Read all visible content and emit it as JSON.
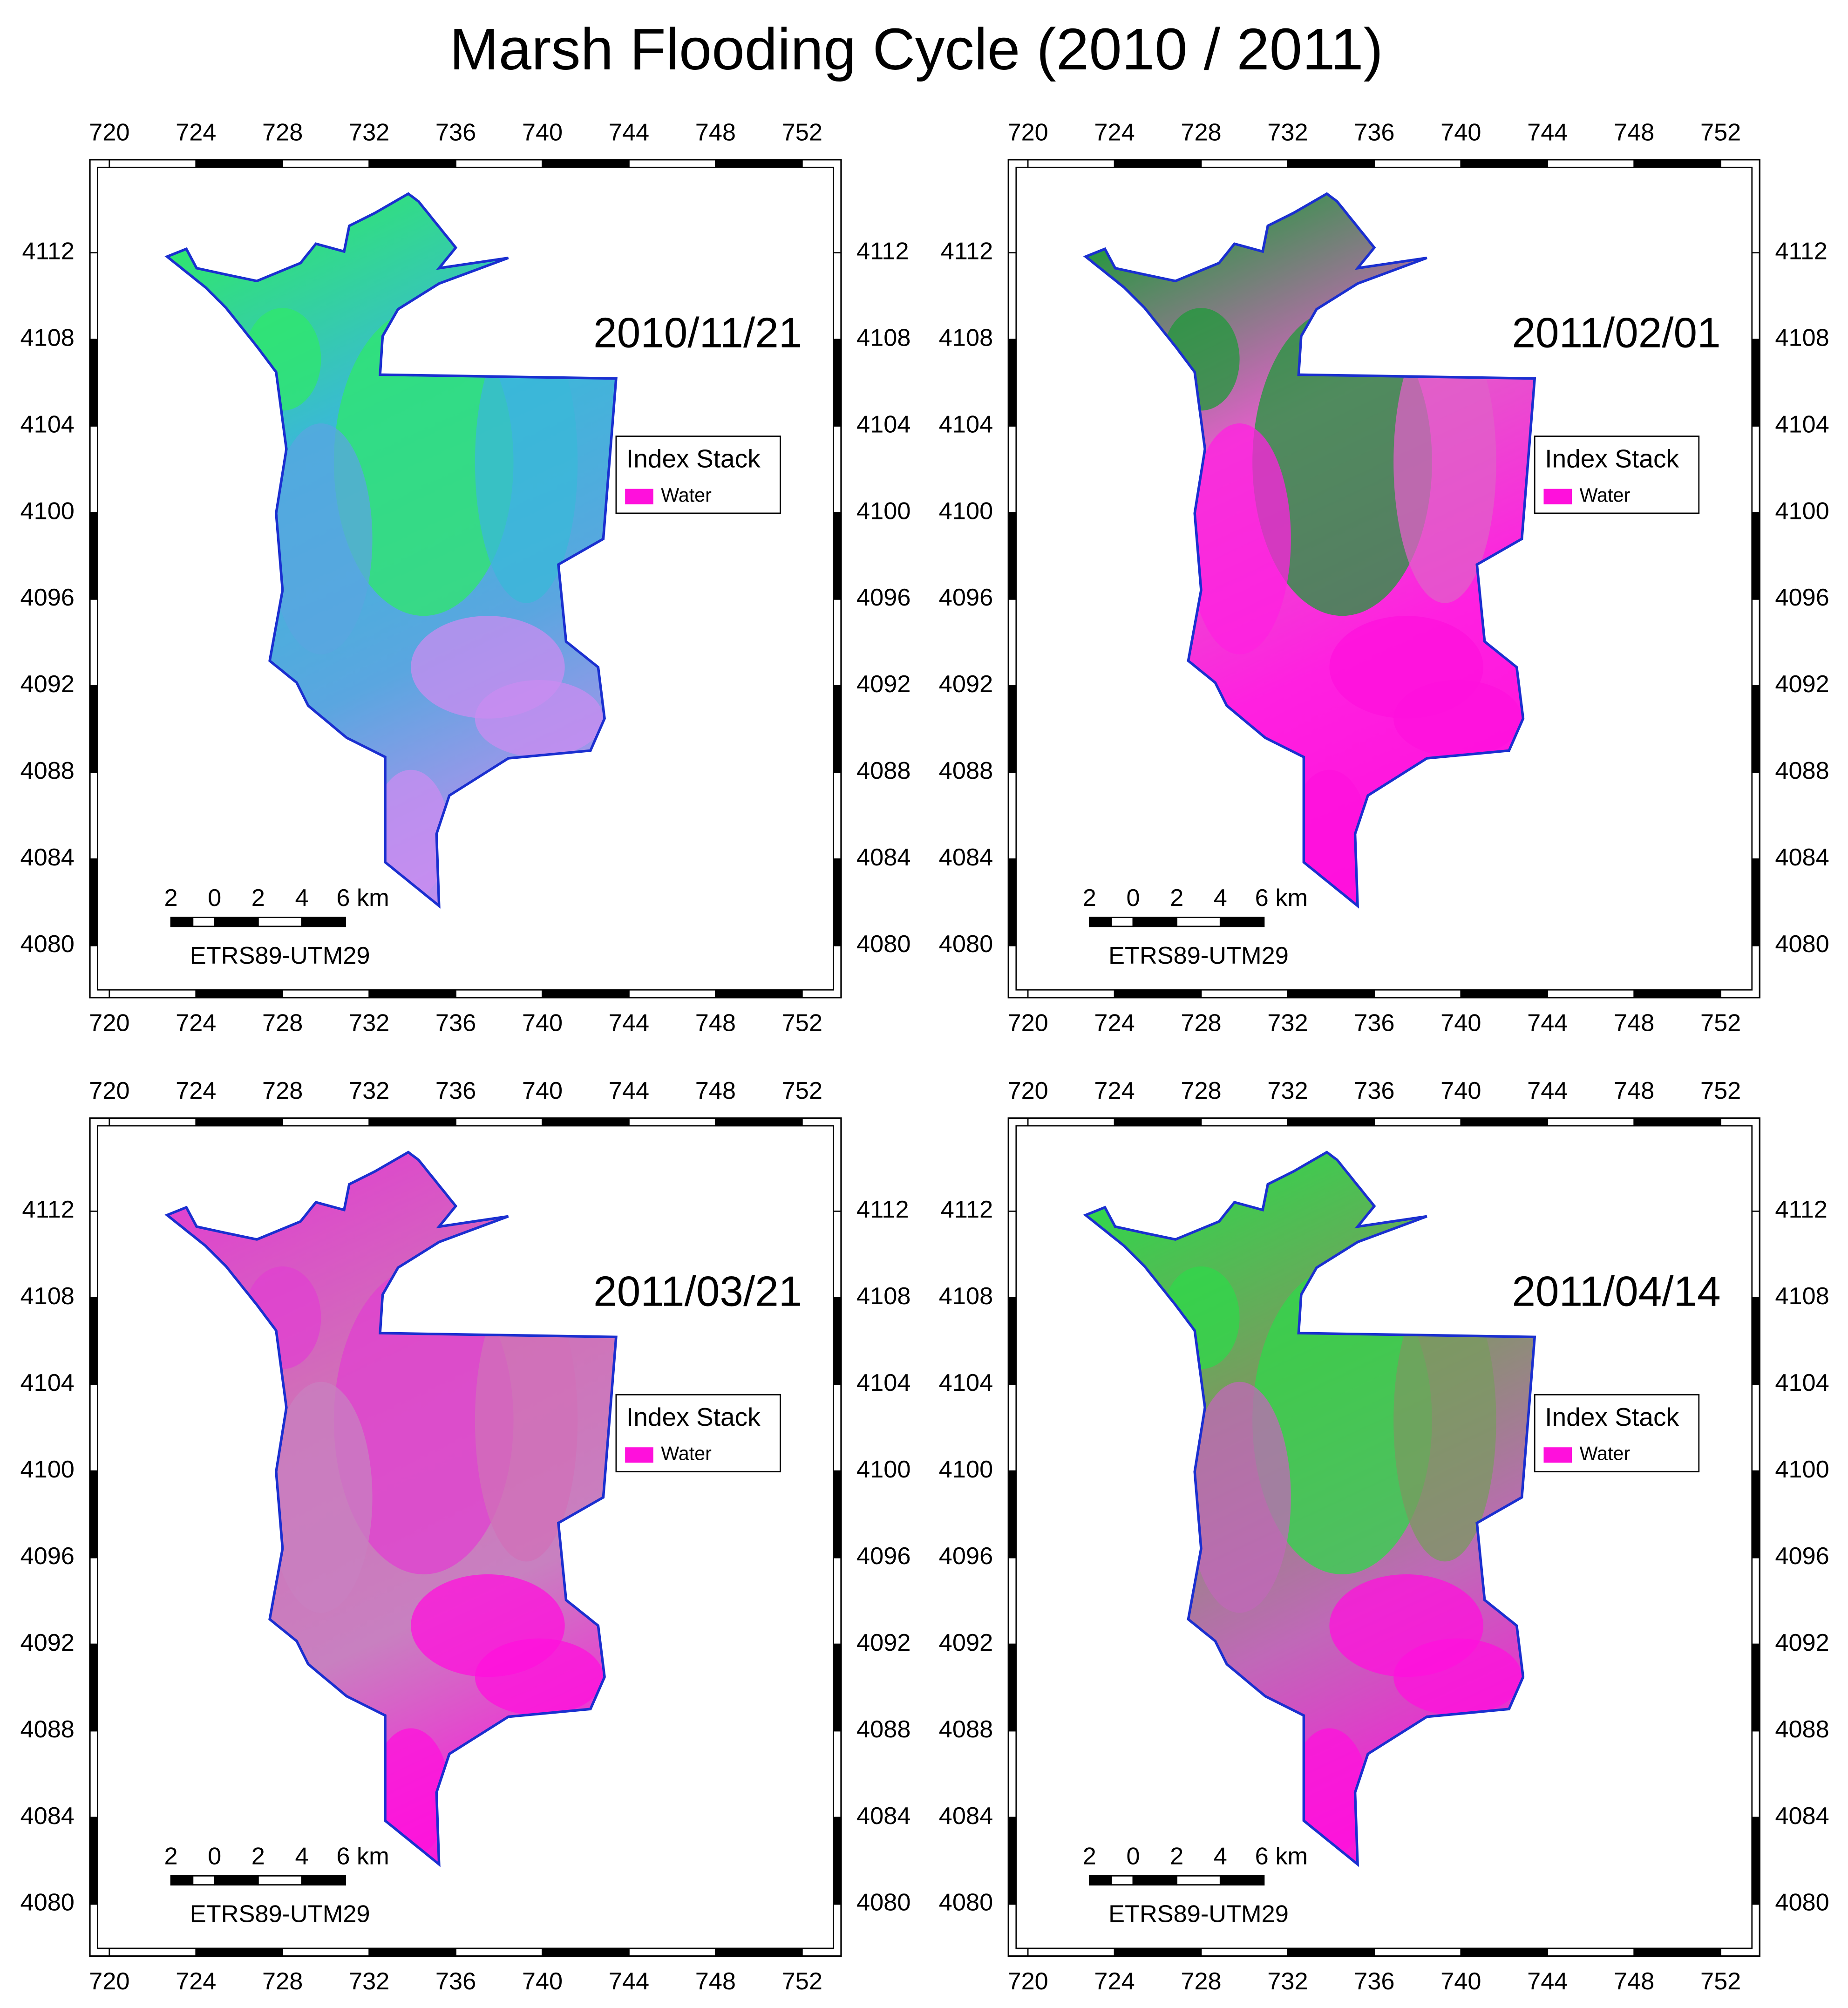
{
  "title": "Marsh Flooding Cycle (2010 / 2011)",
  "map": {
    "xlim": [
      719.1,
      753.8
    ],
    "ylim": [
      4077.6,
      4116.3
    ],
    "xticks": [
      720,
      724,
      728,
      732,
      736,
      740,
      744,
      748,
      752
    ],
    "yticks": [
      4080,
      4084,
      4088,
      4092,
      4096,
      4100,
      4104,
      4108,
      4112
    ],
    "outline_color": "#1a2fd0",
    "scale_bar": {
      "labels": [
        "2",
        "0",
        "2",
        "4",
        "6 km"
      ]
    },
    "crs": "ETRS89-UTM29",
    "legend": {
      "title": "Index Stack",
      "items": [
        {
          "label": "Water",
          "color": "#ff10dc"
        }
      ]
    }
  },
  "panels": [
    {
      "date": "2010/11/21",
      "colors": [
        "#2fe86a",
        "#3ab8d8",
        "#5aa6e0",
        "#c98cf0"
      ]
    },
    {
      "date": "2011/02/01",
      "colors": [
        "#1f9a3a",
        "#e060c8",
        "#ff20e0",
        "#ff10dc"
      ]
    },
    {
      "date": "2011/03/21",
      "colors": [
        "#e040d0",
        "#d070b8",
        "#c880c0",
        "#ff10dc"
      ]
    },
    {
      "date": "2011/04/14",
      "colors": [
        "#2fd84a",
        "#7a9a60",
        "#c068b8",
        "#ff10dc"
      ]
    }
  ]
}
